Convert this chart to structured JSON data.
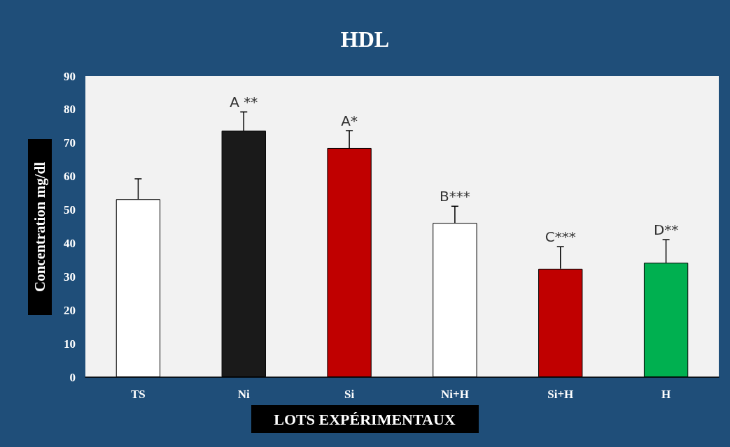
{
  "chart_data": {
    "type": "bar",
    "title": "HDL",
    "xlabel": "LOTS EXPÉRIMENTAUX",
    "ylabel": "Concentration mg/dl",
    "categories": [
      "TS",
      "Ni",
      "Si",
      "Ni+H",
      "Si+H",
      "H"
    ],
    "values": [
      53.2,
      73.7,
      68.5,
      46.1,
      32.4,
      34.2
    ],
    "colors": [
      "#ffffff",
      "#1a1a1a",
      "#c00000",
      "#ffffff",
      "#c00000",
      "#00b050"
    ],
    "errors": [
      [
        53.2,
        59.3
      ],
      [
        73.7,
        79.3
      ],
      [
        68.5,
        73.7
      ],
      [
        46.1,
        51.1
      ],
      [
        32.4,
        39
      ],
      [
        34.2,
        41.1
      ]
    ],
    "ylim": [
      0,
      90
    ],
    "yticks": [
      0,
      10,
      20,
      30,
      40,
      50,
      60,
      70,
      80,
      90
    ],
    "grid": false,
    "annotations": [
      {
        "text": "A **",
        "x": "Ni",
        "y": 79.3
      },
      {
        "text": "A*",
        "x": "Si",
        "y": 73.7
      },
      {
        "text": "B***",
        "x": "Ni+H",
        "y": 51.1
      },
      {
        "text": "C***",
        "x": "Si+H",
        "y": 39
      },
      {
        "text": "D**",
        "x": "H",
        "y": 41.1
      }
    ]
  }
}
